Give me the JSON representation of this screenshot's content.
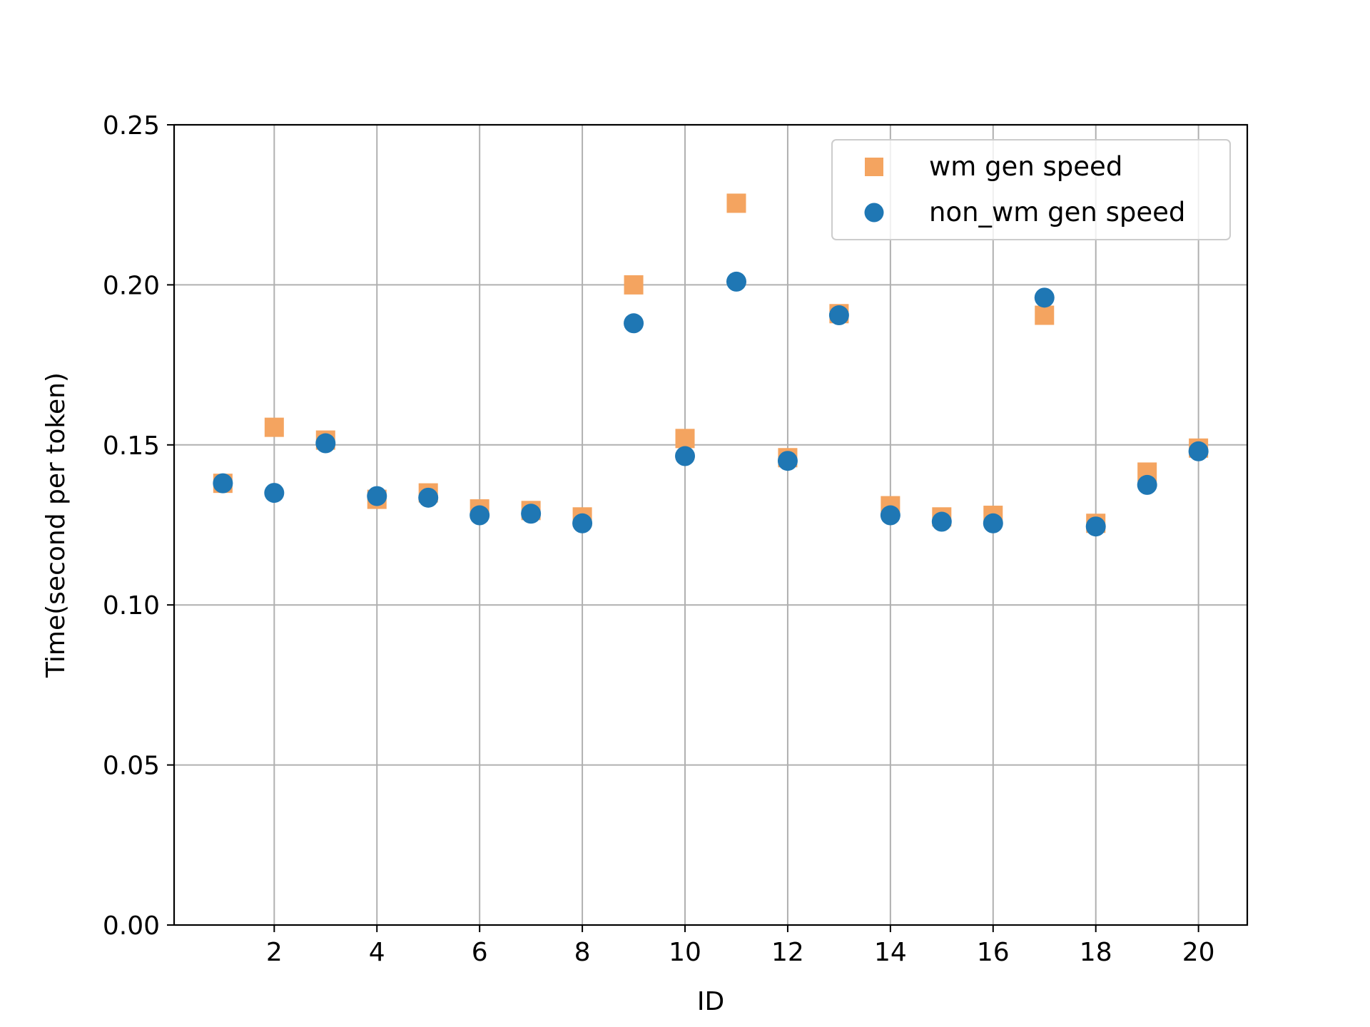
{
  "chart_data": {
    "type": "scatter",
    "title": "",
    "xlabel": "ID",
    "ylabel": "Time(second per token)",
    "xlim": [
      0.05,
      20.95
    ],
    "ylim": [
      0,
      0.25
    ],
    "xticks": [
      2,
      4,
      6,
      8,
      10,
      12,
      14,
      16,
      18,
      20
    ],
    "yticks": [
      0.0,
      0.05,
      0.1,
      0.15,
      0.2,
      0.25
    ],
    "ytick_labels": [
      "0.00",
      "0.05",
      "0.10",
      "0.15",
      "0.20",
      "0.25"
    ],
    "grid": true,
    "legend_position": "top-right",
    "x": [
      1,
      2,
      3,
      4,
      5,
      6,
      7,
      8,
      9,
      10,
      11,
      12,
      13,
      14,
      15,
      16,
      17,
      18,
      19,
      20
    ],
    "series": [
      {
        "name": "wm gen speed",
        "marker": "square",
        "color": "#f4a460",
        "values": [
          0.138,
          0.1555,
          0.1515,
          0.133,
          0.135,
          0.13,
          0.1295,
          0.1275,
          0.2,
          0.152,
          0.2255,
          0.146,
          0.191,
          0.131,
          0.1275,
          0.128,
          0.1905,
          0.1255,
          0.1415,
          0.149
        ]
      },
      {
        "name": "non_wm gen speed",
        "marker": "circle",
        "color": "#1f77b4",
        "values": [
          0.138,
          0.135,
          0.1505,
          0.134,
          0.1335,
          0.128,
          0.1285,
          0.1255,
          0.188,
          0.1465,
          0.201,
          0.145,
          0.1905,
          0.128,
          0.126,
          0.1255,
          0.196,
          0.1245,
          0.1375,
          0.148
        ]
      }
    ]
  }
}
